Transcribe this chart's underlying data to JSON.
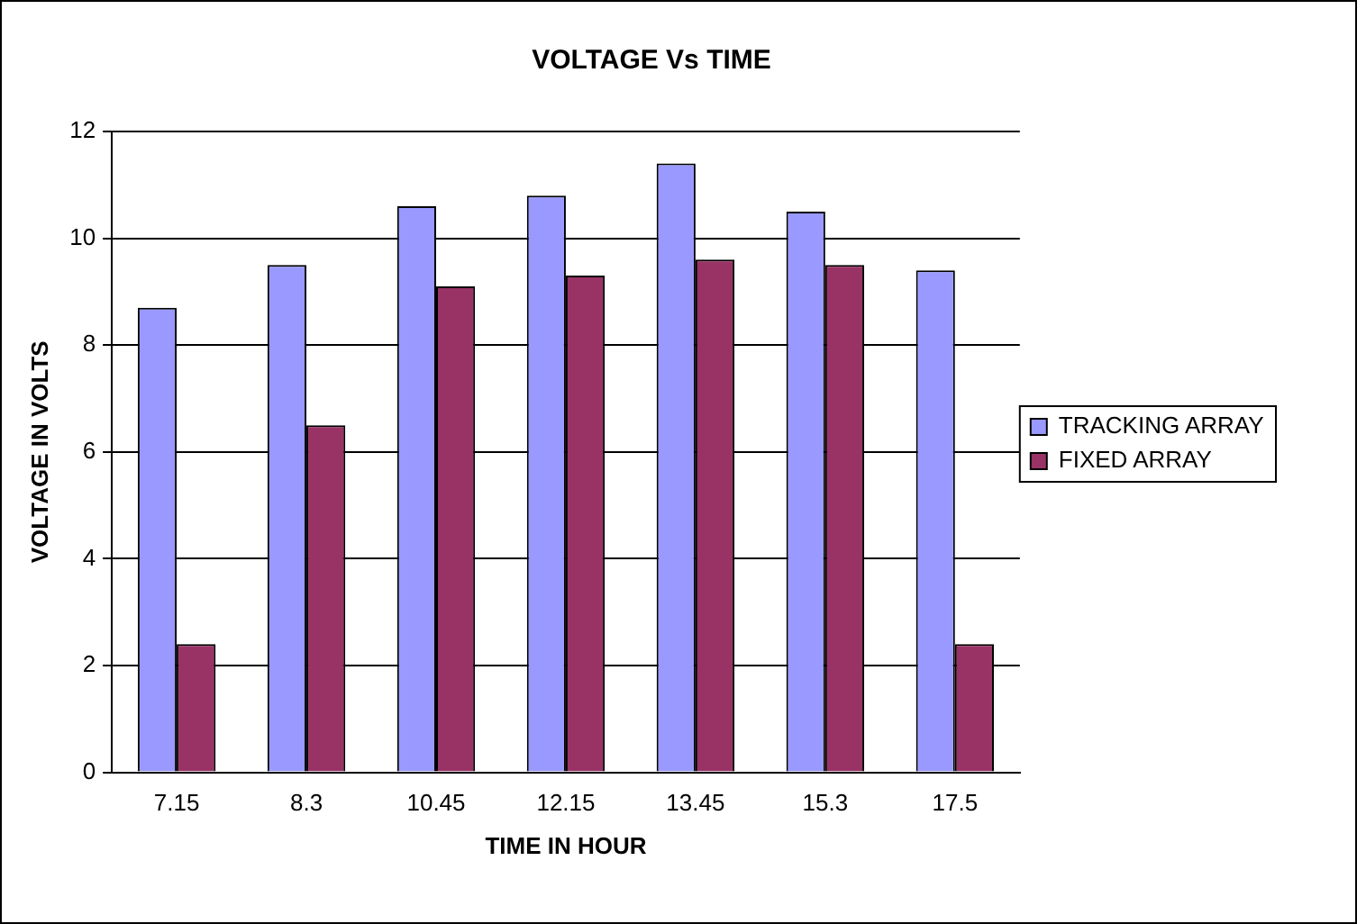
{
  "chart_data": {
    "type": "bar",
    "title": "VOLTAGE Vs TIME",
    "xlabel": "TIME IN HOUR",
    "ylabel": "VOLTAGE IN VOLTS",
    "categories": [
      "7.15",
      "8.3",
      "10.45",
      "12.15",
      "13.45",
      "15.3",
      "17.5"
    ],
    "series": [
      {
        "name": "TRACKING ARRAY",
        "color": "#9999ff",
        "values": [
          8.7,
          9.5,
          10.6,
          10.8,
          11.4,
          10.5,
          9.4
        ]
      },
      {
        "name": "FIXED ARRAY",
        "color": "#993366",
        "values": [
          2.4,
          6.5,
          9.1,
          9.3,
          9.6,
          9.5,
          2.4
        ]
      }
    ],
    "ylim": [
      0,
      12
    ],
    "yticks": [
      0,
      2,
      4,
      6,
      8,
      10,
      12
    ],
    "grid": "y",
    "legend": "right"
  }
}
